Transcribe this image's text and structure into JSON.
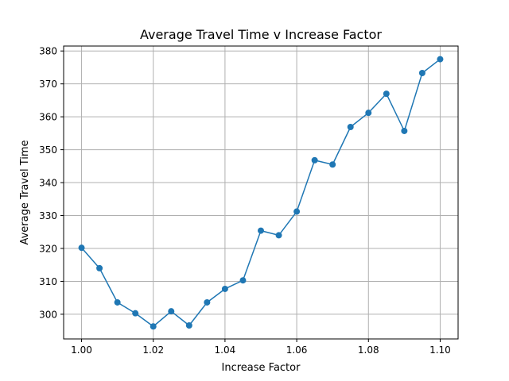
{
  "chart_data": {
    "type": "line",
    "title": "Average Travel Time v Increase Factor",
    "xlabel": "Increase Factor",
    "ylabel": "Average Travel Time",
    "xlim": [
      0.995,
      1.105
    ],
    "ylim": [
      292.5,
      381.5
    ],
    "xticks": [
      1.0,
      1.02,
      1.04,
      1.06,
      1.08,
      1.1
    ],
    "xtick_labels": [
      "1.00",
      "1.02",
      "1.04",
      "1.06",
      "1.08",
      "1.10"
    ],
    "yticks": [
      300,
      310,
      320,
      330,
      340,
      350,
      360,
      370,
      380
    ],
    "ytick_labels": [
      "300",
      "310",
      "320",
      "330",
      "340",
      "350",
      "360",
      "370",
      "380"
    ],
    "grid": true,
    "series": [
      {
        "color": "#1f77b4",
        "marker": "circle",
        "x": [
          1.0,
          1.005,
          1.01,
          1.015,
          1.02,
          1.025,
          1.03,
          1.035,
          1.04,
          1.045,
          1.05,
          1.055,
          1.06,
          1.065,
          1.07,
          1.075,
          1.08,
          1.085,
          1.09,
          1.095,
          1.1
        ],
        "y": [
          320.2,
          314.0,
          303.6,
          300.3,
          296.3,
          300.9,
          296.6,
          303.6,
          307.7,
          310.3,
          325.4,
          324.0,
          331.2,
          346.8,
          345.5,
          356.9,
          361.2,
          367.0,
          355.7,
          373.3,
          377.5
        ]
      }
    ]
  }
}
